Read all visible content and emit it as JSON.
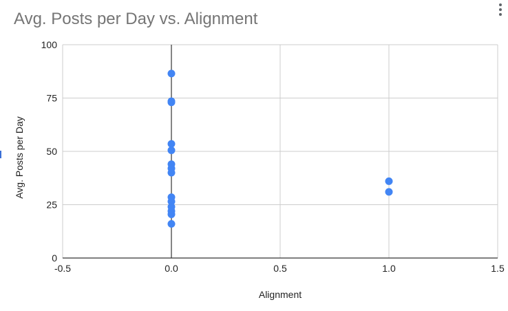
{
  "chart_data": {
    "type": "scatter",
    "title": "Avg. Posts per Day vs. Alignment",
    "xlabel": "Alignment",
    "ylabel": "Avg. Posts per Day",
    "xlim": [
      -0.5,
      1.5
    ],
    "ylim": [
      0,
      100
    ],
    "x_ticks": [
      -0.5,
      0.0,
      0.5,
      1.0,
      1.5
    ],
    "x_tick_labels": [
      "-0.5",
      "0.0",
      "0.5",
      "1.0",
      "1.5"
    ],
    "y_ticks": [
      0,
      25,
      50,
      75,
      100
    ],
    "y_tick_labels": [
      "0",
      "25",
      "50",
      "75",
      "100"
    ],
    "grid": true,
    "series": [
      {
        "color": "#4285f4",
        "points": [
          [
            0,
            86.5
          ],
          [
            0,
            73.5
          ],
          [
            0,
            73.0
          ],
          [
            0,
            53.5
          ],
          [
            0,
            50.5
          ],
          [
            0,
            44.0
          ],
          [
            0,
            42.0
          ],
          [
            0,
            40.0
          ],
          [
            0,
            28.5
          ],
          [
            0,
            26.5
          ],
          [
            0,
            24.0
          ],
          [
            0,
            22.0
          ],
          [
            0,
            20.5
          ],
          [
            0,
            16.0
          ],
          [
            1,
            36.0
          ],
          [
            1,
            31.0
          ]
        ]
      }
    ]
  }
}
